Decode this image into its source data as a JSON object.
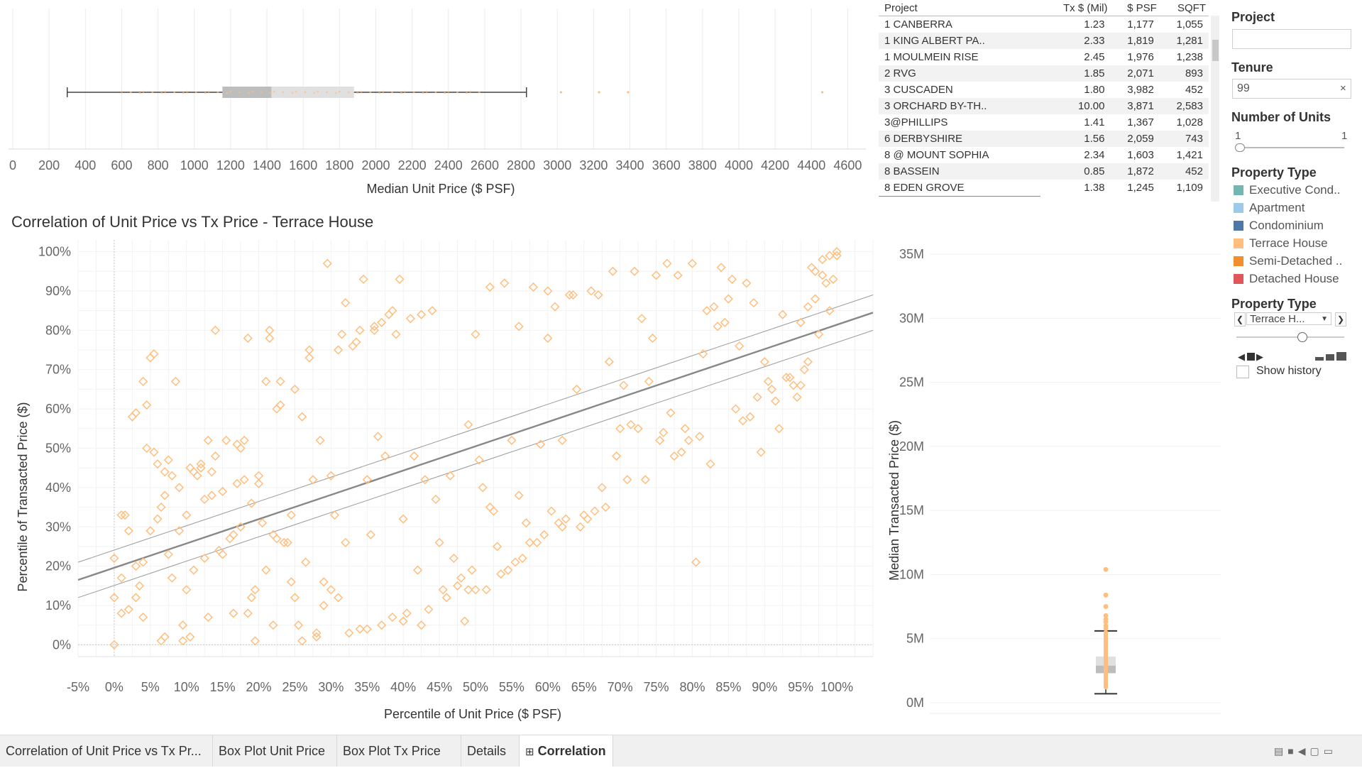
{
  "boxplot_unit": {
    "axis_title": "Median Unit Price ($ PSF)",
    "ticks": [
      "0",
      "200",
      "400",
      "600",
      "800",
      "1000",
      "1200",
      "1400",
      "1600",
      "1800",
      "2000",
      "2200",
      "2400",
      "2600",
      "2800",
      "3000",
      "3200",
      "3400",
      "3600",
      "3800",
      "4000",
      "4200",
      "4400",
      "4600"
    ],
    "whisker_low": 300,
    "q1": 1155,
    "median": 1425,
    "q3": 1880,
    "whisker_high": 2830,
    "outliers": [
      3020,
      3230,
      3390,
      4460
    ]
  },
  "table": {
    "headers": [
      "Project",
      "Tx $ (Mil)",
      "$ PSF",
      "SQFT"
    ],
    "rows": [
      [
        "1 CANBERRA",
        "1.23",
        "1,177",
        "1,055"
      ],
      [
        "1 KING ALBERT PA..",
        "2.33",
        "1,819",
        "1,281"
      ],
      [
        "1 MOULMEIN RISE",
        "2.45",
        "1,976",
        "1,238"
      ],
      [
        "2 RVG",
        "1.85",
        "2,071",
        "893"
      ],
      [
        "3 CUSCADEN",
        "1.80",
        "3,982",
        "452"
      ],
      [
        "3 ORCHARD BY-TH..",
        "10.00",
        "3,871",
        "2,583"
      ],
      [
        "3@PHILLIPS",
        "1.41",
        "1,367",
        "1,028"
      ],
      [
        "6 DERBYSHIRE",
        "1.56",
        "2,059",
        "743"
      ],
      [
        "8 @ MOUNT SOPHIA",
        "2.34",
        "1,603",
        "1,421"
      ],
      [
        "8 BASSEIN",
        "0.85",
        "1,872",
        "452"
      ],
      [
        "8 EDEN GROVE",
        "1.38",
        "1,245",
        "1,109"
      ]
    ]
  },
  "filters": {
    "project_title": "Project",
    "project_value": "",
    "tenure_title": "Tenure",
    "tenure_value": "99",
    "tenure_clear": "×",
    "units_title": "Number of Units",
    "units_min": "1",
    "units_max": "1",
    "legend_title": "Property Type",
    "legend": [
      {
        "label": "Executive Cond..",
        "color": "#72b7b2"
      },
      {
        "label": "Apartment",
        "color": "#9ecae9"
      },
      {
        "label": "Condominium",
        "color": "#4e79a7"
      },
      {
        "label": "Terrace House",
        "color": "#ffbe7d"
      },
      {
        "label": "Semi-Detached ..",
        "color": "#f28e2b"
      },
      {
        "label": "Detached House",
        "color": "#e15759"
      }
    ],
    "page_title": "Property Type",
    "page_value": "Terrace H...",
    "show_history": "Show history"
  },
  "correlation": {
    "title": "Correlation of Unit Price vs Tx Price - Terrace House",
    "xlabel": "Percentile of Unit Price ($ PSF)",
    "ylabel": "Percentile of Transacted Price ($)",
    "xticks": [
      "-5%",
      "0%",
      "5%",
      "10%",
      "15%",
      "20%",
      "25%",
      "30%",
      "35%",
      "40%",
      "45%",
      "50%",
      "55%",
      "60%",
      "65%",
      "70%",
      "75%",
      "80%",
      "85%",
      "90%",
      "95%",
      "100%"
    ],
    "yticks": [
      "0%",
      "10%",
      "20%",
      "30%",
      "40%",
      "50%",
      "60%",
      "70%",
      "80%",
      "90%",
      "100%"
    ]
  },
  "chart_data": [
    {
      "type": "scatter",
      "title": "Correlation of Unit Price vs Tx Price - Terrace House",
      "xlabel": "Percentile of Unit Price ($ PSF)",
      "ylabel": "Percentile of Transacted Price ($)",
      "xlim": [
        -0.05,
        1.05
      ],
      "ylim": [
        -0.03,
        1.03
      ],
      "trend": {
        "x": [
          -0.05,
          1.05
        ],
        "y": [
          0.165,
          0.845
        ],
        "band": 0.045
      },
      "points": [
        [
          0.0,
          0.0
        ],
        [
          0.0,
          0.12
        ],
        [
          0.0,
          0.22
        ],
        [
          0.01,
          0.17
        ],
        [
          0.01,
          0.33
        ],
        [
          0.015,
          0.33
        ],
        [
          0.01,
          0.08
        ],
        [
          0.02,
          0.29
        ],
        [
          0.02,
          0.09
        ],
        [
          0.025,
          0.58
        ],
        [
          0.03,
          0.59
        ],
        [
          0.03,
          0.12
        ],
        [
          0.03,
          0.2
        ],
        [
          0.035,
          0.15
        ],
        [
          0.04,
          0.21
        ],
        [
          0.04,
          0.67
        ],
        [
          0.04,
          0.07
        ],
        [
          0.045,
          0.61
        ],
        [
          0.045,
          0.5
        ],
        [
          0.05,
          0.73
        ],
        [
          0.05,
          0.29
        ],
        [
          0.055,
          0.74
        ],
        [
          0.055,
          0.49
        ],
        [
          0.06,
          0.46
        ],
        [
          0.06,
          0.32
        ],
        [
          0.065,
          0.01
        ],
        [
          0.065,
          0.35
        ],
        [
          0.07,
          0.02
        ],
        [
          0.07,
          0.44
        ],
        [
          0.07,
          0.38
        ],
        [
          0.075,
          0.47
        ],
        [
          0.075,
          0.23
        ],
        [
          0.08,
          0.17
        ],
        [
          0.08,
          0.43
        ],
        [
          0.085,
          0.67
        ],
        [
          0.09,
          0.29
        ],
        [
          0.09,
          0.4
        ],
        [
          0.095,
          0.05
        ],
        [
          0.095,
          0.01
        ],
        [
          0.1,
          0.14
        ],
        [
          0.1,
          0.33
        ],
        [
          0.105,
          0.02
        ],
        [
          0.105,
          0.45
        ],
        [
          0.11,
          0.44
        ],
        [
          0.11,
          0.19
        ],
        [
          0.115,
          0.43
        ],
        [
          0.12,
          0.45
        ],
        [
          0.12,
          0.46
        ],
        [
          0.125,
          0.37
        ],
        [
          0.125,
          0.22
        ],
        [
          0.13,
          0.07
        ],
        [
          0.13,
          0.52
        ],
        [
          0.135,
          0.44
        ],
        [
          0.135,
          0.38
        ],
        [
          0.14,
          0.8
        ],
        [
          0.14,
          0.48
        ],
        [
          0.145,
          0.24
        ],
        [
          0.15,
          0.23
        ],
        [
          0.15,
          0.39
        ],
        [
          0.155,
          0.52
        ],
        [
          0.16,
          0.27
        ],
        [
          0.165,
          0.08
        ],
        [
          0.165,
          0.28
        ],
        [
          0.17,
          0.41
        ],
        [
          0.17,
          0.51
        ],
        [
          0.175,
          0.5
        ],
        [
          0.175,
          0.3
        ],
        [
          0.18,
          0.52
        ],
        [
          0.18,
          0.42
        ],
        [
          0.185,
          0.78
        ],
        [
          0.185,
          0.08
        ],
        [
          0.19,
          0.12
        ],
        [
          0.19,
          0.36
        ],
        [
          0.195,
          0.01
        ],
        [
          0.195,
          0.14
        ],
        [
          0.2,
          0.41
        ],
        [
          0.2,
          0.43
        ],
        [
          0.205,
          0.31
        ],
        [
          0.21,
          0.67
        ],
        [
          0.21,
          0.19
        ],
        [
          0.215,
          0.8
        ],
        [
          0.215,
          0.78
        ],
        [
          0.22,
          0.05
        ],
        [
          0.22,
          0.28
        ],
        [
          0.225,
          0.6
        ],
        [
          0.225,
          0.27
        ],
        [
          0.23,
          0.67
        ],
        [
          0.23,
          0.61
        ],
        [
          0.235,
          0.26
        ],
        [
          0.24,
          0.26
        ],
        [
          0.245,
          0.16
        ],
        [
          0.245,
          0.33
        ],
        [
          0.25,
          0.65
        ],
        [
          0.25,
          0.12
        ],
        [
          0.255,
          0.05
        ],
        [
          0.26,
          0.58
        ],
        [
          0.26,
          0.01
        ],
        [
          0.265,
          0.21
        ],
        [
          0.27,
          0.75
        ],
        [
          0.27,
          0.73
        ],
        [
          0.275,
          0.42
        ],
        [
          0.28,
          0.02
        ],
        [
          0.28,
          0.03
        ],
        [
          0.285,
          0.52
        ],
        [
          0.29,
          0.16
        ],
        [
          0.29,
          0.1
        ],
        [
          0.295,
          0.97
        ],
        [
          0.3,
          0.43
        ],
        [
          0.3,
          0.14
        ],
        [
          0.305,
          0.33
        ],
        [
          0.31,
          0.75
        ],
        [
          0.31,
          0.12
        ],
        [
          0.315,
          0.79
        ],
        [
          0.32,
          0.26
        ],
        [
          0.32,
          0.87
        ],
        [
          0.325,
          0.03
        ],
        [
          0.33,
          0.76
        ],
        [
          0.335,
          0.77
        ],
        [
          0.34,
          0.04
        ],
        [
          0.34,
          0.8
        ],
        [
          0.345,
          0.93
        ],
        [
          0.35,
          0.42
        ],
        [
          0.35,
          0.04
        ],
        [
          0.355,
          0.28
        ],
        [
          0.36,
          0.8
        ],
        [
          0.36,
          0.81
        ],
        [
          0.365,
          0.53
        ],
        [
          0.37,
          0.82
        ],
        [
          0.37,
          0.05
        ],
        [
          0.375,
          0.48
        ],
        [
          0.38,
          0.84
        ],
        [
          0.385,
          0.85
        ],
        [
          0.385,
          0.07
        ],
        [
          0.39,
          0.79
        ],
        [
          0.395,
          0.93
        ],
        [
          0.4,
          0.32
        ],
        [
          0.4,
          0.06
        ],
        [
          0.405,
          0.08
        ],
        [
          0.41,
          0.83
        ],
        [
          0.415,
          0.48
        ],
        [
          0.42,
          0.19
        ],
        [
          0.425,
          0.05
        ],
        [
          0.425,
          0.84
        ],
        [
          0.43,
          0.42
        ],
        [
          0.435,
          0.09
        ],
        [
          0.44,
          0.85
        ],
        [
          0.445,
          0.37
        ],
        [
          0.45,
          0.26
        ],
        [
          0.455,
          0.14
        ],
        [
          0.46,
          0.12
        ],
        [
          0.465,
          0.43
        ],
        [
          0.47,
          0.22
        ],
        [
          0.475,
          0.15
        ],
        [
          0.48,
          0.17
        ],
        [
          0.485,
          0.06
        ],
        [
          0.49,
          0.56
        ],
        [
          0.49,
          0.14
        ],
        [
          0.495,
          0.19
        ],
        [
          0.5,
          0.79
        ],
        [
          0.5,
          0.14
        ],
        [
          0.505,
          0.47
        ],
        [
          0.51,
          0.4
        ],
        [
          0.515,
          0.14
        ],
        [
          0.52,
          0.91
        ],
        [
          0.52,
          0.35
        ],
        [
          0.525,
          0.34
        ],
        [
          0.53,
          0.25
        ],
        [
          0.535,
          0.18
        ],
        [
          0.54,
          0.92
        ],
        [
          0.545,
          0.19
        ],
        [
          0.55,
          0.52
        ],
        [
          0.555,
          0.21
        ],
        [
          0.56,
          0.81
        ],
        [
          0.56,
          0.38
        ],
        [
          0.565,
          0.22
        ],
        [
          0.57,
          0.31
        ],
        [
          0.575,
          0.26
        ],
        [
          0.58,
          0.91
        ],
        [
          0.585,
          0.26
        ],
        [
          0.59,
          0.51
        ],
        [
          0.595,
          0.28
        ],
        [
          0.6,
          0.9
        ],
        [
          0.6,
          0.78
        ],
        [
          0.605,
          0.34
        ],
        [
          0.61,
          0.86
        ],
        [
          0.615,
          0.31
        ],
        [
          0.62,
          0.52
        ],
        [
          0.62,
          0.3
        ],
        [
          0.625,
          0.32
        ],
        [
          0.63,
          0.89
        ],
        [
          0.635,
          0.89
        ],
        [
          0.64,
          0.65
        ],
        [
          0.645,
          0.3
        ],
        [
          0.65,
          0.33
        ],
        [
          0.655,
          0.32
        ],
        [
          0.66,
          0.9
        ],
        [
          0.665,
          0.34
        ],
        [
          0.67,
          0.89
        ],
        [
          0.675,
          0.4
        ],
        [
          0.68,
          0.35
        ],
        [
          0.685,
          0.72
        ],
        [
          0.69,
          0.95
        ],
        [
          0.695,
          0.48
        ],
        [
          0.7,
          0.55
        ],
        [
          0.705,
          0.66
        ],
        [
          0.71,
          0.42
        ],
        [
          0.715,
          0.56
        ],
        [
          0.72,
          0.95
        ],
        [
          0.725,
          0.55
        ],
        [
          0.73,
          0.83
        ],
        [
          0.735,
          0.42
        ],
        [
          0.74,
          0.67
        ],
        [
          0.745,
          0.78
        ],
        [
          0.75,
          0.94
        ],
        [
          0.755,
          0.52
        ],
        [
          0.76,
          0.54
        ],
        [
          0.765,
          0.97
        ],
        [
          0.77,
          0.59
        ],
        [
          0.775,
          0.48
        ],
        [
          0.78,
          0.94
        ],
        [
          0.785,
          0.49
        ],
        [
          0.79,
          0.55
        ],
        [
          0.795,
          0.52
        ],
        [
          0.8,
          0.97
        ],
        [
          0.805,
          0.21
        ],
        [
          0.81,
          0.53
        ],
        [
          0.815,
          0.74
        ],
        [
          0.82,
          0.85
        ],
        [
          0.825,
          0.46
        ],
        [
          0.83,
          0.86
        ],
        [
          0.835,
          0.81
        ],
        [
          0.84,
          0.96
        ],
        [
          0.845,
          0.82
        ],
        [
          0.85,
          0.88
        ],
        [
          0.855,
          0.93
        ],
        [
          0.86,
          0.6
        ],
        [
          0.865,
          0.76
        ],
        [
          0.87,
          0.57
        ],
        [
          0.875,
          0.92
        ],
        [
          0.88,
          0.58
        ],
        [
          0.885,
          0.87
        ],
        [
          0.89,
          0.63
        ],
        [
          0.895,
          0.49
        ],
        [
          0.9,
          0.72
        ],
        [
          0.905,
          0.67
        ],
        [
          0.91,
          0.65
        ],
        [
          0.915,
          0.62
        ],
        [
          0.92,
          0.55
        ],
        [
          0.925,
          0.84
        ],
        [
          0.93,
          0.68
        ],
        [
          0.935,
          0.68
        ],
        [
          0.94,
          0.66
        ],
        [
          0.945,
          0.63
        ],
        [
          0.95,
          0.66
        ],
        [
          0.955,
          0.7
        ],
        [
          0.96,
          0.72
        ],
        [
          0.965,
          0.96
        ],
        [
          0.97,
          0.88
        ],
        [
          0.975,
          0.79
        ],
        [
          0.98,
          0.94
        ],
        [
          0.985,
          0.92
        ],
        [
          0.99,
          0.85
        ],
        [
          0.995,
          0.93
        ],
        [
          1.0,
          0.99
        ],
        [
          1.0,
          1.0
        ],
        [
          0.99,
          0.99
        ],
        [
          0.98,
          0.98
        ],
        [
          0.97,
          0.95
        ],
        [
          0.96,
          0.86
        ],
        [
          0.95,
          0.82
        ]
      ]
    },
    {
      "type": "boxplot",
      "title": "Median Transacted Price",
      "ylabel": "Median Transacted Price ($)",
      "yticks": [
        "0M",
        "5M",
        "10M",
        "15M",
        "20M",
        "25M",
        "30M",
        "35M"
      ],
      "ylim": [
        0,
        36
      ],
      "whisker_low": 0.7,
      "q1": 2.3,
      "median": 2.9,
      "q3": 3.6,
      "whisker_high": 5.6,
      "outliers": [
        5.8,
        6.0,
        6.3,
        6.5,
        6.8,
        7.5,
        8.4,
        10.4
      ]
    }
  ],
  "tabs": [
    {
      "label": "Correlation of Unit Price vs Tx Pr...",
      "active": false
    },
    {
      "label": "Box Plot Unit Price",
      "active": false
    },
    {
      "label": "Box Plot Tx Price",
      "active": false
    },
    {
      "label": "Details",
      "active": false
    },
    {
      "label": "Correlation",
      "active": true,
      "icon": "grid-icon"
    }
  ],
  "colors": {
    "terrace": "#ffbe7d",
    "grid": "#ebebeb",
    "axis_text": "#666666",
    "trend": "#888888"
  }
}
